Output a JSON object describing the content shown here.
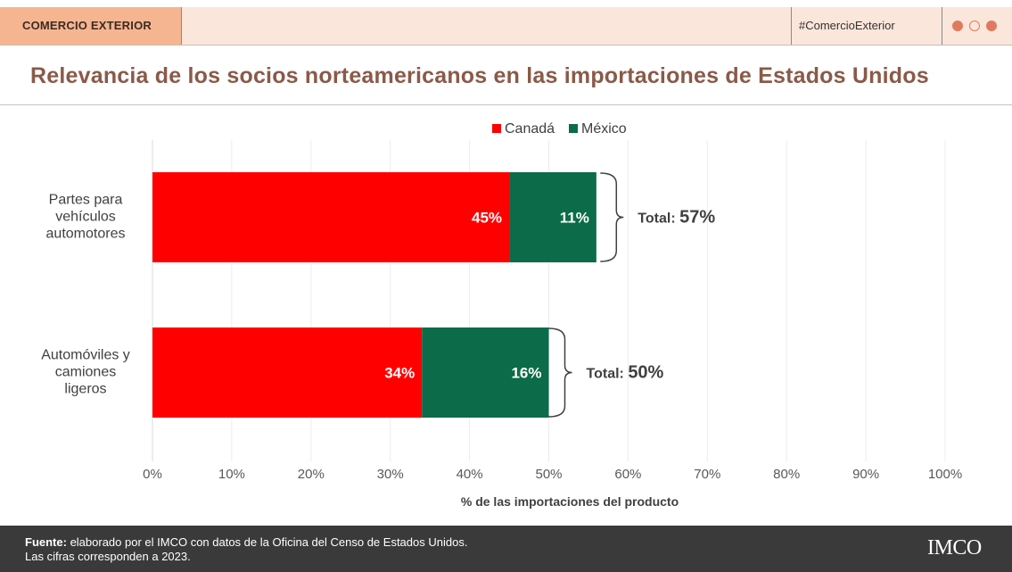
{
  "header": {
    "section_tag": "COMERCIO EXTERIOR",
    "hashtag": "#ComercioExterior",
    "dot_colors": [
      "#e07a5f",
      "#f2a98a",
      "#e07a5f"
    ]
  },
  "title": "Relevancia de los socios norteamericanos en las importaciones de Estados Unidos",
  "chart_data": {
    "type": "bar",
    "orientation": "horizontal",
    "stacked": true,
    "categories": [
      [
        "Partes para",
        "vehículos",
        "automotores"
      ],
      [
        "Automóviles y",
        "camiones",
        "ligeros"
      ]
    ],
    "series": [
      {
        "name": "Canadá",
        "color": "#ff0000",
        "values": [
          45,
          34
        ],
        "labels": [
          "45%",
          "34%"
        ]
      },
      {
        "name": "México",
        "color": "#0c6b48",
        "values": [
          11,
          16
        ],
        "labels": [
          "11%",
          "16%"
        ]
      }
    ],
    "totals": [
      {
        "prefix": "Total:",
        "value": "57%",
        "position": 56.5
      },
      {
        "prefix": "Total:",
        "value": "50%",
        "position": 50
      }
    ],
    "xlim": [
      0,
      100
    ],
    "xticks": [
      "0%",
      "10%",
      "20%",
      "30%",
      "40%",
      "50%",
      "60%",
      "70%",
      "80%",
      "90%",
      "100%"
    ],
    "xlabel": "% de las importaciones del producto",
    "grid": true,
    "legend": "top-center"
  },
  "footer": {
    "source_label": "Fuente:",
    "source_text": " elaborado por el IMCO con datos de la Oficina del Censo de Estados Unidos.",
    "note": "Las cifras corresponden a 2023.",
    "logo": "IMCO"
  }
}
